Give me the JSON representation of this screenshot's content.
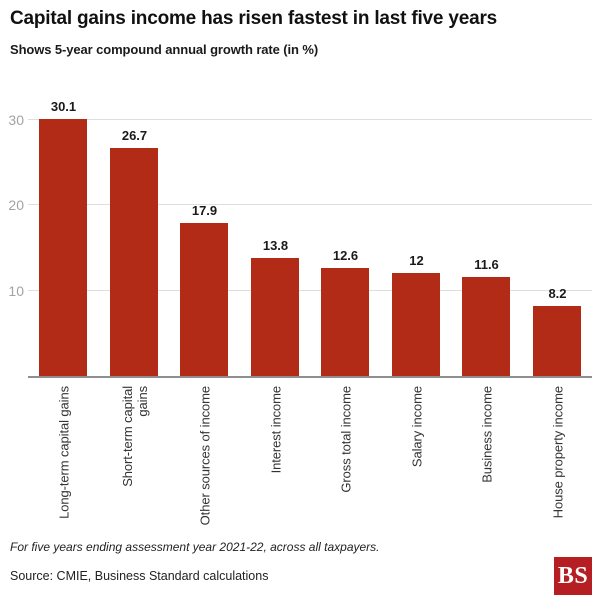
{
  "chart_data": {
    "type": "bar",
    "title": "Capital gains income has risen fastest in last five years",
    "subtitle": "Shows 5-year compound annual growth rate (in %)",
    "categories": [
      "Long-term capital gains",
      "Short-term capital\ngains",
      "Other sources of income",
      "Interest income",
      "Gross total income",
      "Salary income",
      "Business income",
      "House property income"
    ],
    "values": [
      30.1,
      26.7,
      17.9,
      13.8,
      12.6,
      12,
      11.6,
      8.2
    ],
    "value_labels": [
      "30.1",
      "26.7",
      "17.9",
      "13.8",
      "12.6",
      "12",
      "11.6",
      "8.2"
    ],
    "xlabel": "",
    "ylabel": "",
    "yticks": [
      10,
      20,
      30
    ],
    "ylim": [
      0,
      33
    ],
    "grid": "horizontal",
    "bar_color": "#b22b17",
    "gridline_color": "#dedede",
    "axis_color": "#8f8f8f",
    "tick_label_color": "#a3a3a3"
  },
  "footer": {
    "note": "For five years ending assessment year 2021-22, across all taxpayers.",
    "source": "Source: CMIE, Business Standard calculations",
    "logo_text": "BS",
    "logo_color": "#b51f24"
  }
}
